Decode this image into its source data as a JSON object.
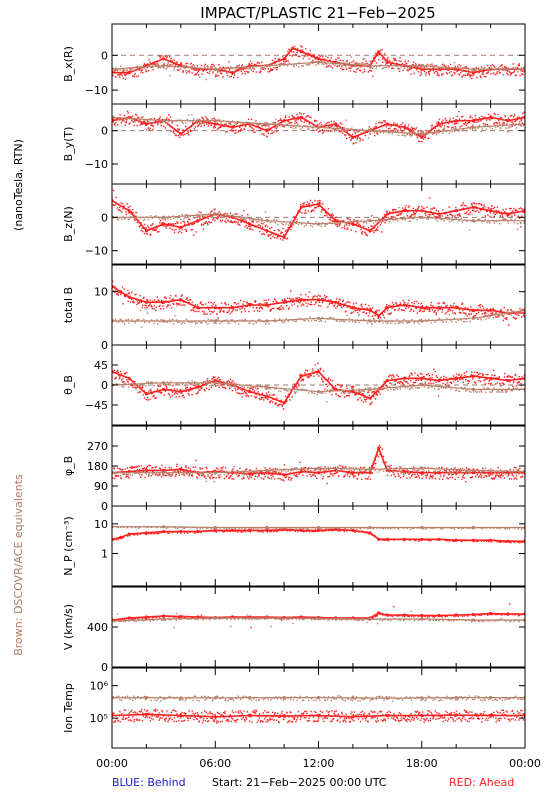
{
  "title": "IMPACT/PLASTIC   21−Feb−2025",
  "side_label_units": "(nanoTesla, RTN)",
  "side_label_brown": "Brown: DSCOVR/ACE equivalents",
  "footer": {
    "left": "BLUE: Behind",
    "center": "Start: 21−Feb−2025 00:00 UTC",
    "right": "RED: Ahead"
  },
  "colors": {
    "ahead": "#ff2020",
    "equivalent": "#b8806a",
    "behind": "#1c1cc8",
    "axis": "#000000"
  },
  "x_axis": {
    "ticks": [
      "00:00",
      "06:00",
      "12:00",
      "18:00",
      "00:00"
    ],
    "range_hours": [
      0,
      24
    ]
  },
  "chart_data": [
    {
      "type": "scatter",
      "ylabel": "B_x(R)",
      "ylim": [
        -14,
        9
      ],
      "tick_values": [
        -10,
        0
      ],
      "tick_labels": [
        "−10",
        "0"
      ],
      "zero_line": true,
      "series": [
        {
          "name": "Ahead",
          "x": [
            0,
            1,
            2,
            3,
            4,
            5,
            6,
            7,
            8,
            9,
            10,
            10.5,
            11,
            12,
            13,
            14,
            15,
            15.5,
            16,
            17,
            18,
            19,
            20,
            21,
            22,
            23,
            24
          ],
          "values": [
            -5,
            -5,
            -3,
            -1,
            -3,
            -4,
            -4,
            -5,
            -3,
            -3,
            -1,
            2,
            1,
            -1,
            -2,
            -3,
            -3,
            1,
            -2,
            -3,
            -4,
            -4,
            -4,
            -5,
            -4,
            -4,
            -4
          ]
        },
        {
          "name": "",
          "x": [
            0,
            3,
            6,
            9,
            12,
            15,
            18,
            21,
            24
          ],
          "values": [
            -4,
            -3,
            -4,
            -3,
            -2,
            -3,
            -3,
            -4,
            -4
          ]
        }
      ]
    },
    {
      "type": "scatter",
      "ylabel": "B_y(T)",
      "ylim": [
        -16,
        8
      ],
      "tick_values": [
        -10,
        0
      ],
      "tick_labels": [
        "−10",
        "0"
      ],
      "zero_line": true,
      "series": [
        {
          "name": "Ahead",
          "x": [
            0,
            1,
            2,
            3,
            4,
            5,
            6,
            7,
            8,
            9,
            10,
            11,
            12,
            13,
            14,
            15,
            16,
            17,
            18,
            19,
            20,
            21,
            22,
            23,
            24
          ],
          "values": [
            3,
            4,
            2,
            3,
            -1,
            3,
            2,
            1,
            2,
            0,
            3,
            4,
            1,
            2,
            -2,
            0,
            2,
            1,
            -2,
            2,
            3,
            3,
            4,
            3,
            4
          ]
        },
        {
          "name": "",
          "x": [
            0,
            3,
            6,
            9,
            12,
            15,
            18,
            21,
            24
          ],
          "values": [
            4,
            3,
            3,
            2,
            1,
            0,
            -1,
            1,
            2
          ]
        }
      ]
    },
    {
      "type": "scatter",
      "ylabel": "B_z(N)",
      "ylim": [
        -14,
        10
      ],
      "tick_values": [
        -10,
        0
      ],
      "tick_labels": [
        "−10",
        "0"
      ],
      "zero_line": true,
      "series": [
        {
          "name": "Ahead",
          "x": [
            0,
            1,
            2,
            3,
            4,
            5,
            6,
            7,
            8,
            9,
            10,
            11,
            12,
            13,
            14,
            15,
            16,
            17,
            18,
            19,
            20,
            21,
            22,
            23,
            24
          ],
          "values": [
            5,
            2,
            -4,
            -2,
            -3,
            -1,
            1,
            0,
            -2,
            -4,
            -6,
            3,
            4,
            -1,
            -2,
            -4,
            1,
            2,
            2,
            1,
            2,
            3,
            2,
            1,
            2
          ]
        },
        {
          "name": "",
          "x": [
            0,
            3,
            6,
            9,
            12,
            15,
            18,
            21,
            24
          ],
          "values": [
            0,
            0,
            1,
            -1,
            -2,
            -1,
            0,
            -1,
            -1
          ]
        }
      ]
    },
    {
      "type": "scatter",
      "ylabel": "total B",
      "ylim": [
        0,
        15
      ],
      "tick_values": [
        0,
        10
      ],
      "tick_labels": [
        "0",
        "10"
      ],
      "zero_line": false,
      "series": [
        {
          "name": "Ahead",
          "x": [
            0,
            0.5,
            1,
            2,
            3,
            4,
            5,
            6,
            7,
            8,
            9,
            10,
            11,
            12,
            13,
            14,
            15,
            15.5,
            16,
            17,
            18,
            19,
            20,
            21,
            22,
            23,
            24
          ],
          "values": [
            11,
            10,
            9,
            8,
            8,
            8.5,
            7,
            7,
            7,
            7.5,
            7.5,
            8,
            8.5,
            8.5,
            8,
            7,
            6.5,
            5.5,
            7,
            7.5,
            7,
            7,
            7,
            6.5,
            6.5,
            6,
            6
          ]
        },
        {
          "name": "",
          "x": [
            0,
            3,
            6,
            9,
            12,
            15,
            18,
            21,
            24
          ],
          "values": [
            4.5,
            4.5,
            4.5,
            4.5,
            5,
            4.5,
            4.5,
            5,
            6.5
          ]
        }
      ]
    },
    {
      "type": "scatter",
      "ylabel": "θ_B",
      "ylim": [
        -90,
        90
      ],
      "tick_values": [
        -45,
        0,
        45
      ],
      "tick_labels": [
        "−45",
        "0",
        "45"
      ],
      "zero_line": true,
      "series": [
        {
          "name": "Ahead",
          "x": [
            0,
            1,
            2,
            3,
            4,
            5,
            6,
            7,
            8,
            9,
            10,
            11,
            12,
            13,
            14,
            15,
            16,
            17,
            18,
            19,
            20,
            21,
            22,
            23,
            24
          ],
          "values": [
            30,
            15,
            -20,
            -10,
            -15,
            -5,
            10,
            0,
            -15,
            -25,
            -40,
            20,
            30,
            -10,
            -15,
            -30,
            10,
            15,
            15,
            10,
            15,
            20,
            15,
            10,
            15
          ]
        },
        {
          "name": "",
          "x": [
            0,
            3,
            6,
            9,
            12,
            15,
            18,
            21,
            24
          ],
          "values": [
            0,
            5,
            5,
            -5,
            -15,
            -10,
            0,
            -10,
            -10
          ]
        }
      ]
    },
    {
      "type": "scatter",
      "ylabel": "φ_B",
      "ylim": [
        0,
        360
      ],
      "tick_values": [
        0,
        90,
        180,
        270
      ],
      "tick_labels": [
        "0",
        "90",
        "180",
        "270"
      ],
      "zero_line": false,
      "series": [
        {
          "name": "Ahead",
          "x": [
            0,
            1,
            2,
            3,
            4,
            5,
            6,
            7,
            8,
            9,
            10,
            11,
            12,
            13,
            14,
            15,
            15.5,
            16,
            17,
            18,
            19,
            20,
            21,
            22,
            23,
            24
          ],
          "values": [
            150,
            155,
            160,
            160,
            165,
            150,
            155,
            150,
            145,
            150,
            140,
            155,
            150,
            160,
            150,
            150,
            260,
            160,
            155,
            150,
            150,
            150,
            150,
            150,
            150,
            150
          ]
        },
        {
          "name": "",
          "x": [
            0,
            3,
            6,
            9,
            12,
            15,
            18,
            21,
            24
          ],
          "values": [
            150,
            150,
            150,
            160,
            170,
            165,
            170,
            160,
            155
          ]
        }
      ]
    },
    {
      "type": "line",
      "ylabel": "N_P (cm⁻³)",
      "scale": "log",
      "ylim": [
        0.08,
        40
      ],
      "tick_values": [
        1,
        10
      ],
      "tick_labels": [
        "1",
        "10"
      ],
      "zero_line": false,
      "series": [
        {
          "name": "Ahead",
          "x": [
            0,
            0.5,
            1,
            2,
            3,
            4,
            5,
            6,
            7,
            8,
            9,
            10,
            11,
            12,
            13,
            14,
            15,
            15.5,
            16,
            17,
            18,
            19,
            20,
            21,
            22,
            23,
            24
          ],
          "values": [
            3,
            3.5,
            4.5,
            5,
            5.5,
            5.5,
            5.5,
            6,
            6,
            6,
            6,
            6.5,
            6,
            6,
            6.5,
            6,
            5,
            3,
            3,
            3,
            3,
            3,
            2.8,
            2.8,
            2.8,
            2.6,
            2.6
          ]
        },
        {
          "name": "",
          "x": [
            0,
            3,
            6,
            9,
            12,
            15,
            18,
            21,
            24
          ],
          "values": [
            8,
            8,
            7.5,
            7.5,
            7.5,
            7.5,
            7.5,
            7.5,
            7.5
          ]
        }
      ]
    },
    {
      "type": "line",
      "ylabel": "V (km/s)",
      "ylim": [
        0,
        800
      ],
      "tick_values": [
        0,
        400
      ],
      "tick_labels": [
        "0",
        "400"
      ],
      "zero_line": false,
      "series": [
        {
          "name": "Ahead",
          "x": [
            0,
            1,
            2,
            3,
            4,
            5,
            6,
            7,
            8,
            9,
            10,
            11,
            12,
            13,
            14,
            15,
            15.5,
            16,
            17,
            18,
            19,
            20,
            21,
            22,
            23,
            24
          ],
          "values": [
            470,
            490,
            500,
            510,
            505,
            500,
            495,
            500,
            500,
            500,
            495,
            500,
            495,
            490,
            490,
            490,
            540,
            520,
            520,
            515,
            515,
            520,
            525,
            535,
            530,
            530
          ]
        },
        {
          "name": "",
          "x": [
            0,
            3,
            6,
            9,
            12,
            15,
            18,
            21,
            24
          ],
          "values": [
            460,
            480,
            490,
            490,
            485,
            480,
            480,
            470,
            470
          ]
        }
      ]
    },
    {
      "type": "scatter",
      "ylabel": "Ion Temp",
      "scale": "log",
      "ylim": [
        12000,
        3500000
      ],
      "tick_values": [
        100000,
        1000000
      ],
      "tick_labels": [
        "10⁵",
        "10⁶"
      ],
      "zero_line": false,
      "series": [
        {
          "name": "Ahead",
          "x": [
            0,
            2,
            4,
            6,
            8,
            10,
            12,
            14,
            16,
            18,
            20,
            22,
            24
          ],
          "values": [
            120000,
            130000,
            120000,
            110000,
            120000,
            115000,
            120000,
            110000,
            120000,
            120000,
            125000,
            120000,
            120000
          ]
        },
        {
          "name": "",
          "x": [
            0,
            2,
            4,
            6,
            8,
            10,
            12,
            14,
            16,
            18,
            20,
            22,
            24
          ],
          "values": [
            420000,
            430000,
            420000,
            420000,
            430000,
            430000,
            430000,
            420000,
            410000,
            420000,
            430000,
            430000,
            430000
          ]
        }
      ]
    }
  ]
}
